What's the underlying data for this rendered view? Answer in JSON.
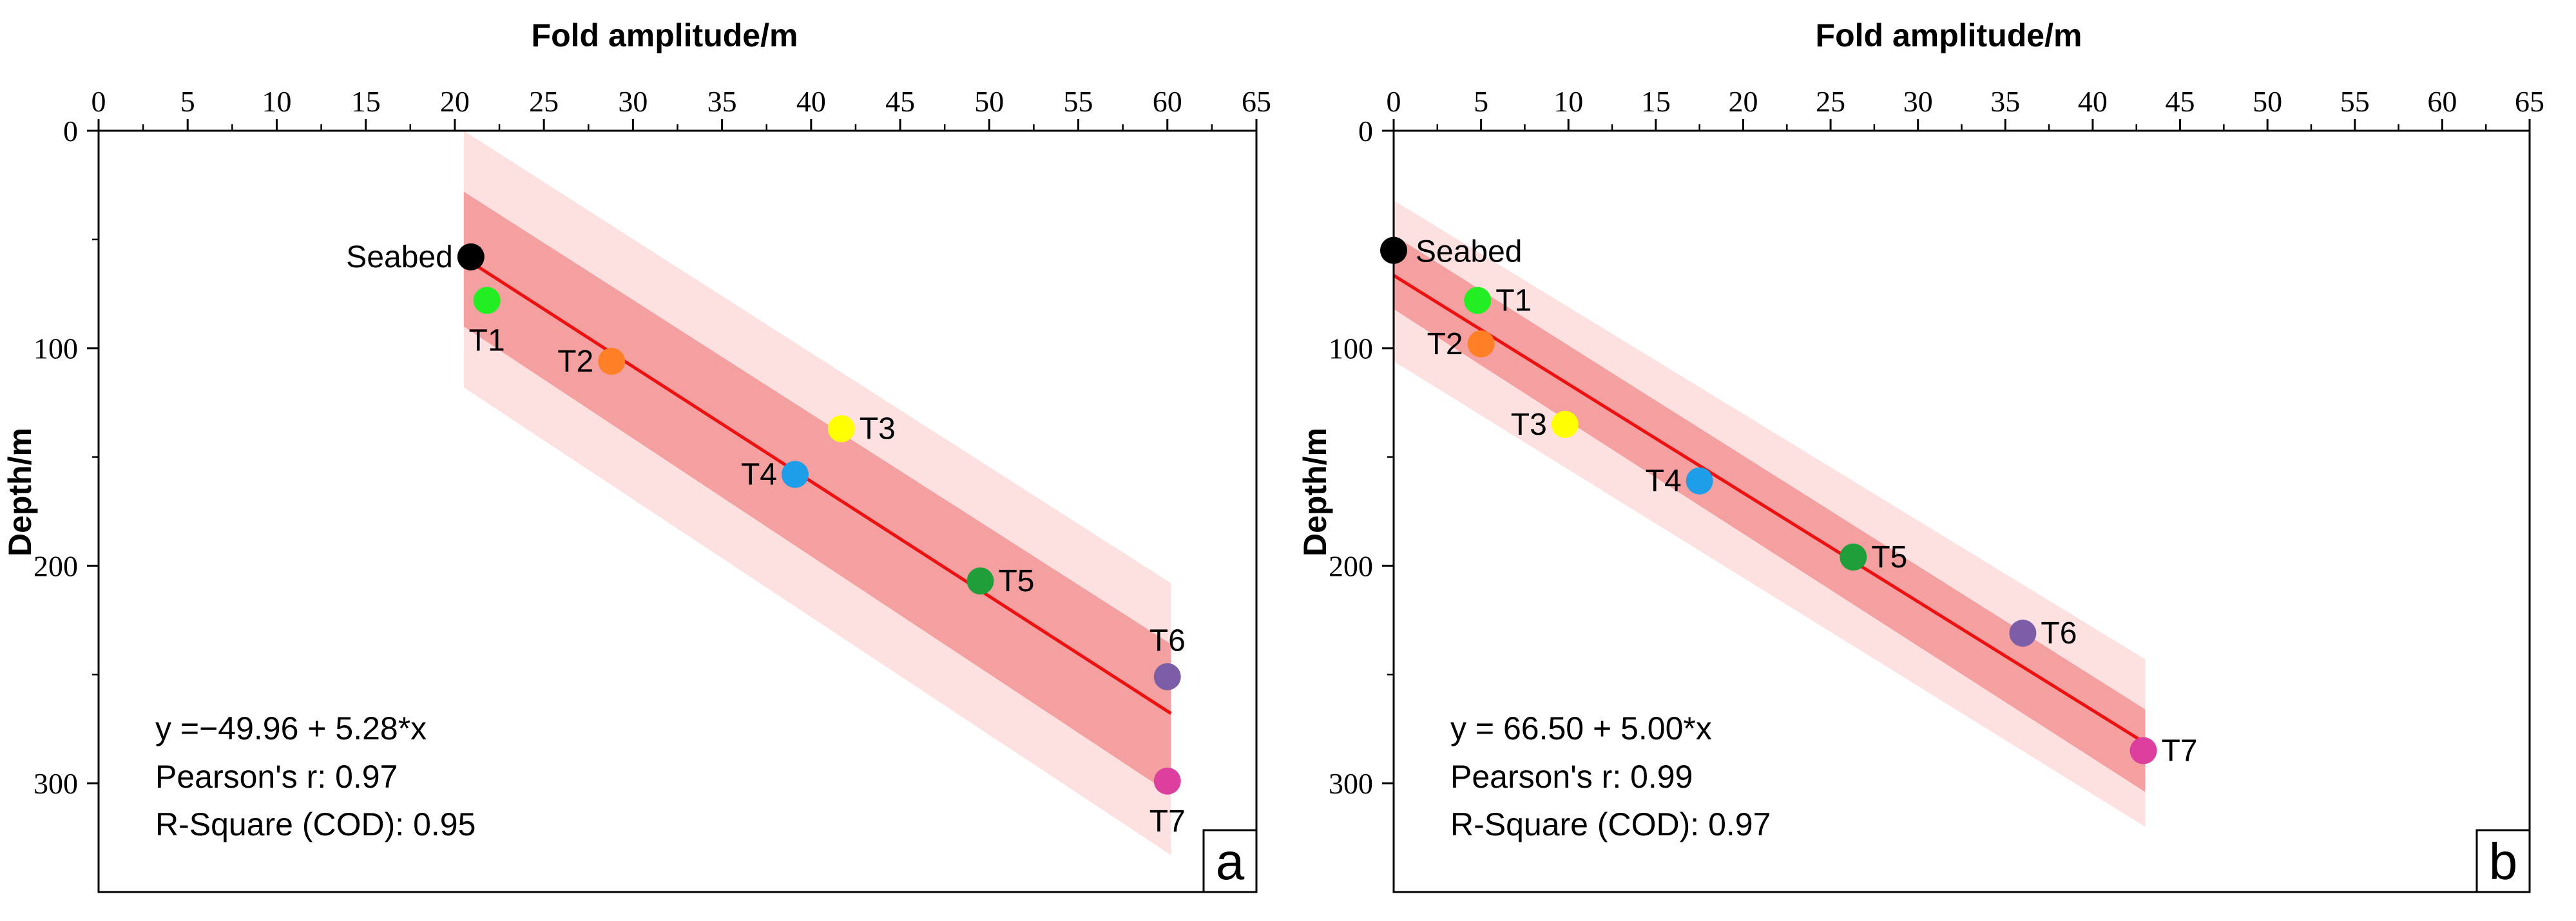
{
  "chart_data": [
    {
      "type": "scatter",
      "panel": "a",
      "xlabel": "Fold amplitude/m",
      "ylabel": "Depth/m",
      "xlim": [
        0,
        65
      ],
      "ylim": [
        0,
        350
      ],
      "x_ticks": [
        "0",
        "5",
        "10",
        "15",
        "20",
        "25",
        "30",
        "35",
        "40",
        "45",
        "50",
        "55",
        "60",
        "65"
      ],
      "y_ticks": [
        "0",
        "100",
        "200",
        "300"
      ],
      "points": [
        {
          "label": "Seabed",
          "x": 20.9,
          "y": 58,
          "color": "#000000"
        },
        {
          "label": "T1",
          "x": 21.8,
          "y": 78,
          "color": "#22ee22"
        },
        {
          "label": "T2",
          "x": 28.8,
          "y": 106,
          "color": "#ff7f27"
        },
        {
          "label": "T3",
          "x": 41.7,
          "y": 137,
          "color": "#ffff00"
        },
        {
          "label": "T4",
          "x": 39.1,
          "y": 158,
          "color": "#1e9ee8"
        },
        {
          "label": "T5",
          "x": 49.5,
          "y": 207,
          "color": "#1f9e3a"
        },
        {
          "label": "T6",
          "x": 60.0,
          "y": 251,
          "color": "#7b5ea7"
        },
        {
          "label": "T7",
          "x": 60.0,
          "y": 299,
          "color": "#dd3f9e"
        }
      ],
      "fit": {
        "intercept": -49.96,
        "slope": 5.28,
        "x_range": [
          20.5,
          60.2
        ]
      },
      "confidence_band": {
        "upper": [
          [
            20.5,
            28
          ],
          [
            60.2,
            236
          ]
        ],
        "lower": [
          [
            20.5,
            90
          ],
          [
            60.2,
            305
          ]
        ]
      },
      "prediction_band": {
        "upper": [
          [
            20.5,
            0
          ],
          [
            60.2,
            208
          ]
        ],
        "lower": [
          [
            20.5,
            118
          ],
          [
            60.2,
            333
          ]
        ]
      },
      "equation": "y =−49.96 + 5.28*x",
      "pearson": "Pearson's r: 0.97",
      "r_square": "R-Square (COD): 0.95"
    },
    {
      "type": "scatter",
      "panel": "b",
      "xlabel": "Fold amplitude/m",
      "ylabel": "Depth/m",
      "xlim": [
        0,
        65
      ],
      "ylim": [
        0,
        350
      ],
      "x_ticks": [
        "0",
        "5",
        "10",
        "15",
        "20",
        "25",
        "30",
        "35",
        "40",
        "45",
        "50",
        "55",
        "60",
        "65"
      ],
      "y_ticks": [
        "0",
        "100",
        "200",
        "300"
      ],
      "points": [
        {
          "label": "Seabed",
          "x": 0.0,
          "y": 55,
          "color": "#000000"
        },
        {
          "label": "T1",
          "x": 4.8,
          "y": 78,
          "color": "#22ee22"
        },
        {
          "label": "T2",
          "x": 5.0,
          "y": 98,
          "color": "#ff7f27"
        },
        {
          "label": "T3",
          "x": 9.8,
          "y": 135,
          "color": "#ffff00"
        },
        {
          "label": "T4",
          "x": 17.5,
          "y": 161,
          "color": "#1e9ee8"
        },
        {
          "label": "T5",
          "x": 26.3,
          "y": 196,
          "color": "#1f9e3a"
        },
        {
          "label": "T6",
          "x": 36.0,
          "y": 231,
          "color": "#7b5ea7"
        },
        {
          "label": "T7",
          "x": 42.9,
          "y": 285,
          "color": "#dd3f9e"
        }
      ],
      "fit": {
        "intercept": 66.5,
        "slope": 5.0,
        "x_range": [
          0,
          43
        ]
      },
      "confidence_band": {
        "upper": [
          [
            0,
            48
          ],
          [
            43,
            266
          ]
        ],
        "lower": [
          [
            0,
            82
          ],
          [
            43,
            304
          ]
        ]
      },
      "prediction_band": {
        "upper": [
          [
            0,
            32
          ],
          [
            43,
            243
          ]
        ],
        "lower": [
          [
            0,
            106
          ],
          [
            43,
            320
          ]
        ]
      },
      "equation": "y = 66.50 + 5.00*x",
      "pearson": "Pearson's r: 0.99",
      "r_square": "R-Square (COD): 0.97"
    }
  ],
  "colors": {
    "fit_line": "#ee1111",
    "confidence_band": "#f4a0a0",
    "prediction_band": "#fde1e1",
    "axis": "#000000"
  }
}
